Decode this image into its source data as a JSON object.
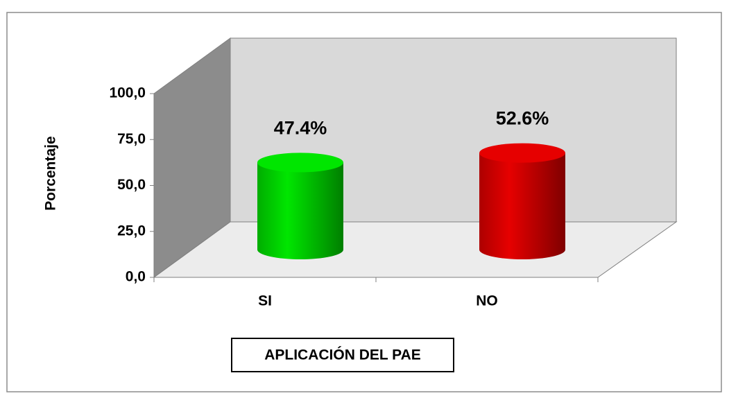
{
  "chart_data": {
    "type": "bar3d",
    "categories": [
      "SI",
      "NO"
    ],
    "series": [
      {
        "name": "Porcentaje",
        "values": [
          47.4,
          52.6
        ],
        "value_labels": [
          "47.4%",
          "52.6%"
        ],
        "colors": [
          "#00e600",
          "#e60000"
        ]
      }
    ],
    "y_label": "Porcentaje",
    "x_label": "APLICACIÓN DEL PAE",
    "ylim": [
      0,
      100
    ],
    "yticks": [
      {
        "value": 0,
        "label": "0,0"
      },
      {
        "value": 25,
        "label": "25,0"
      },
      {
        "value": 50,
        "label": "50,0"
      },
      {
        "value": 75,
        "label": "75,0"
      },
      {
        "value": 100,
        "label": "100,0"
      }
    ]
  }
}
